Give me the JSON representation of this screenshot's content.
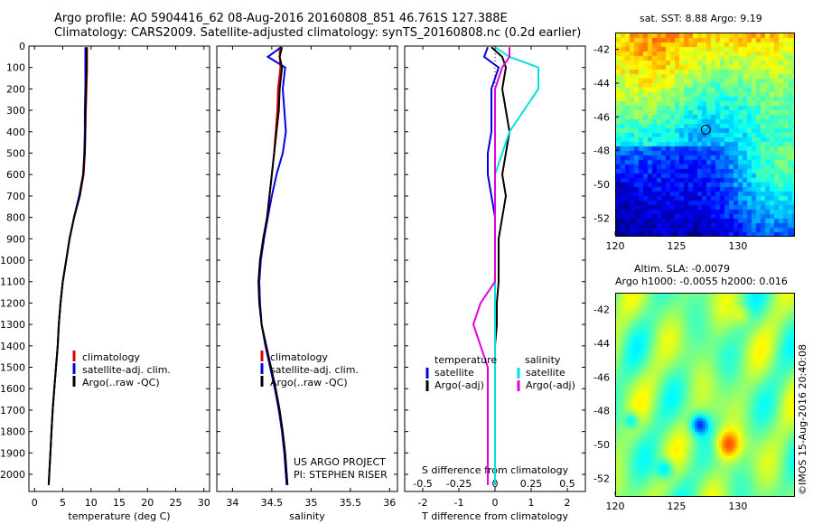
{
  "header": {
    "line1": "Argo profile: AO 5904416_62 08-Aug-2016 20160808_851 46.761S 127.388E",
    "line2": "Climatology: CARS2009. Satellite-adjusted climatology: synTS_20160808.nc (0.2d earlier)"
  },
  "side_label": "©IMOS 15-Aug-2016 20:40:08",
  "maps": {
    "sst": {
      "title": "sat. SST: 8.88 Argo: 9.19",
      "yticks": [
        "-42",
        "-44",
        "-46",
        "-48",
        "-50",
        "-52"
      ],
      "xticks": [
        "120",
        "125",
        "130"
      ],
      "argo_lon": 127.388,
      "argo_lat": -46.761
    },
    "sla": {
      "title1": "Altim. SLA: -0.0079",
      "title2": "Argo h1000: -0.0055 h2000: 0.016",
      "yticks": [
        "-42",
        "-44",
        "-46",
        "-48",
        "-50",
        "-52"
      ],
      "xticks": [
        "120",
        "125",
        "130"
      ],
      "argo_lon": 127.388,
      "argo_lat": -46.761
    }
  },
  "colors": {
    "climatology": "#e00000",
    "satellite": "#0000e0",
    "argo": "#000000",
    "t_satellite": "#0000e0",
    "s_satellite": "#00e0e0",
    "s_argo": "#e000e0"
  },
  "chart_data": [
    {
      "type": "line",
      "panel": "temperature",
      "xlabel": "temperature (deg C)",
      "ylabel": "",
      "xlim": [
        -1,
        31
      ],
      "ylim": [
        2080,
        0
      ],
      "xticks": [
        "0",
        "5",
        "10",
        "15",
        "20",
        "25",
        "30"
      ],
      "yticks": [
        "0",
        "100",
        "200",
        "300",
        "400",
        "500",
        "600",
        "700",
        "800",
        "900",
        "1000",
        "1100",
        "1200",
        "1300",
        "1400",
        "1500",
        "1600",
        "1700",
        "1800",
        "1900",
        "2000"
      ],
      "legend": [
        "climatology",
        "satellite-adj. clim.",
        "Argo(..raw -QC)"
      ],
      "depth": [
        5,
        50,
        100,
        200,
        300,
        400,
        500,
        600,
        700,
        800,
        900,
        1000,
        1100,
        1200,
        1300,
        1400,
        1500,
        1600,
        1700,
        1800,
        1900,
        2000,
        2050
      ],
      "series": [
        {
          "name": "climatology",
          "values": [
            9.3,
            9.3,
            9.3,
            9.2,
            9.1,
            9.0,
            8.9,
            8.7,
            8.0,
            7.0,
            6.2,
            5.6,
            5.0,
            4.6,
            4.3,
            4.1,
            3.8,
            3.5,
            3.2,
            3.0,
            2.8,
            2.6,
            2.5
          ]
        },
        {
          "name": "satellite-adj. clim.",
          "values": [
            9.0,
            9.0,
            9.0,
            9.0,
            8.9,
            8.9,
            8.8,
            8.6,
            7.9,
            7.0,
            6.2,
            5.6,
            5.0,
            4.6,
            4.3,
            4.1,
            3.8,
            3.5,
            3.2,
            3.0,
            2.8,
            2.6,
            2.5
          ]
        },
        {
          "name": "Argo(..raw -QC)",
          "values": [
            9.2,
            9.2,
            9.2,
            9.1,
            9.0,
            9.0,
            8.9,
            8.6,
            8.0,
            7.0,
            6.2,
            5.6,
            5.0,
            4.6,
            4.3,
            4.1,
            3.8,
            3.5,
            3.2,
            3.0,
            2.8,
            2.6,
            2.5
          ]
        }
      ]
    },
    {
      "type": "line",
      "panel": "salinity",
      "xlabel": "salinity",
      "ylabel": "",
      "xlim": [
        33.8,
        36.1
      ],
      "ylim": [
        2080,
        0
      ],
      "xticks": [
        "34",
        "34.5",
        "35",
        "35.5",
        "36"
      ],
      "legend": [
        "climatology",
        "satellite-adj. clim.",
        "Argo(..raw -QC)"
      ],
      "annotation": [
        "US ARGO PROJECT",
        "PI: STEPHEN RISER"
      ],
      "depth": [
        5,
        50,
        100,
        200,
        300,
        400,
        500,
        600,
        700,
        800,
        900,
        1000,
        1100,
        1200,
        1300,
        1400,
        1500,
        1600,
        1700,
        1800,
        1900,
        2000,
        2050
      ],
      "series": [
        {
          "name": "climatology",
          "values": [
            34.6,
            34.6,
            34.61,
            34.58,
            34.57,
            34.55,
            34.53,
            34.5,
            34.47,
            34.44,
            34.4,
            34.36,
            34.34,
            34.35,
            34.37,
            34.42,
            34.48,
            34.54,
            34.59,
            34.63,
            34.66,
            34.68,
            34.69
          ]
        },
        {
          "name": "satellite-adj. clim.",
          "values": [
            34.62,
            34.45,
            34.67,
            34.64,
            34.66,
            34.68,
            34.64,
            34.56,
            34.5,
            34.45,
            34.4,
            34.36,
            34.34,
            34.35,
            34.37,
            34.42,
            34.48,
            34.54,
            34.59,
            34.63,
            34.66,
            34.68,
            34.69
          ]
        },
        {
          "name": "Argo(..raw -QC)",
          "values": [
            34.63,
            34.6,
            34.63,
            34.6,
            34.59,
            34.56,
            34.53,
            34.5,
            34.47,
            34.44,
            34.39,
            34.35,
            34.33,
            34.34,
            34.37,
            34.43,
            34.49,
            34.55,
            34.6,
            34.64,
            34.67,
            34.69,
            34.7
          ]
        }
      ]
    },
    {
      "type": "line",
      "panel": "difference",
      "xlabel": "T difference from climatology",
      "xlabel2": "S difference from climatology",
      "xlim": [
        -2.5,
        2.5
      ],
      "ylim": [
        2080,
        0
      ],
      "xticks": [
        "-2",
        "-1",
        "0",
        "1",
        "2"
      ],
      "xticks_top": [
        "-0.5",
        "-0.25",
        "0",
        "0.25",
        "0.5"
      ],
      "legend_headers": [
        "temperature",
        "salinity"
      ],
      "legend": [
        "satellite",
        "Argo(-adj)",
        "satellite",
        "Argo(-adj)"
      ],
      "depth": [
        5,
        50,
        100,
        200,
        300,
        400,
        500,
        600,
        700,
        800,
        900,
        1000,
        1100,
        1200,
        1300,
        1400,
        1500,
        1600,
        1700,
        1800,
        1900,
        2000,
        2050
      ],
      "series": [
        {
          "name": "satellite",
          "values": [
            -0.2,
            -0.3,
            0.1,
            -0.1,
            -0.1,
            -0.1,
            -0.2,
            -0.2,
            -0.1,
            0,
            0,
            0,
            0,
            0,
            0,
            0,
            0,
            0,
            0,
            0,
            0,
            0,
            0
          ]
        },
        {
          "name": "Argo(-adj)",
          "values": [
            -0.1,
            0.2,
            0.3,
            0.2,
            0.3,
            0.4,
            0.3,
            0.2,
            0.3,
            0.2,
            0.1,
            0.1,
            0.1,
            0.05,
            0.05,
            0,
            0,
            0,
            0,
            0,
            0,
            0,
            0
          ]
        },
        {
          "name": "satellite",
          "values": [
            0,
            0.1,
            0.3,
            0.3,
            0.2,
            0.1,
            0.05,
            0,
            0,
            0,
            0,
            0,
            0,
            0,
            0,
            0,
            0,
            0,
            0,
            0,
            0,
            0,
            0
          ]
        },
        {
          "name": "Argo(-adj)",
          "values": [
            0.1,
            0.1,
            0.05,
            0,
            0,
            0,
            0,
            0,
            0,
            0,
            0,
            0,
            0,
            -0.1,
            -0.15,
            -0.1,
            -0.05,
            -0.05,
            -0.05,
            -0.05,
            -0.05,
            -0.05,
            -0.05
          ]
        }
      ]
    }
  ]
}
